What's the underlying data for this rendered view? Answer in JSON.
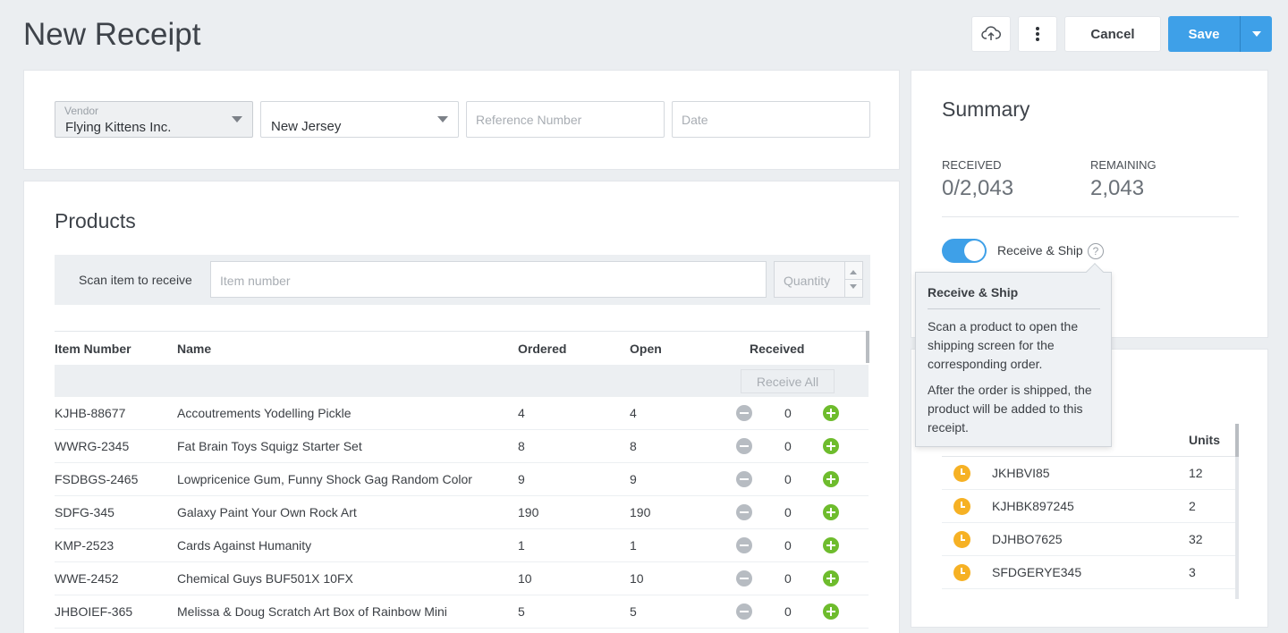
{
  "page": {
    "title": "New Receipt"
  },
  "toolbar": {
    "cancel_label": "Cancel",
    "save_label": "Save",
    "upload_icon": "cloud-upload-icon",
    "more_icon": "more-vertical-icon",
    "accent": "#3ea0e8"
  },
  "receipt": {
    "vendor_label": "Vendor",
    "vendor_value": "Flying Kittens Inc.",
    "location_value": "New Jersey",
    "reference_placeholder": "Reference Number",
    "date_placeholder": "Date"
  },
  "products": {
    "title": "Products",
    "scan_label": "Scan item to receive",
    "item_placeholder": "Item number",
    "quantity_placeholder": "Quantity",
    "columns": {
      "item_number": "Item Number",
      "name": "Name",
      "ordered": "Ordered",
      "open": "Open",
      "received": "Received"
    },
    "receive_all_label": "Receive All",
    "rows": [
      {
        "item": "KJHB-88677",
        "name": "Accoutrements Yodelling Pickle",
        "ordered": "4",
        "open": "4",
        "received": "0"
      },
      {
        "item": "WWRG-2345",
        "name": "Fat Brain Toys Squigz Starter Set",
        "ordered": "8",
        "open": "8",
        "received": "0"
      },
      {
        "item": "FSDBGS-2465",
        "name": "Lowpricenice Gum, Funny Shock Gag Random Color",
        "ordered": "9",
        "open": "9",
        "received": "0"
      },
      {
        "item": "SDFG-345",
        "name": "Galaxy Paint Your Own Rock Art",
        "ordered": "190",
        "open": "190",
        "received": "0"
      },
      {
        "item": "KMP-2523",
        "name": "Cards Against Humanity",
        "ordered": "1",
        "open": "1",
        "received": "0"
      },
      {
        "item": "WWE-2452",
        "name": "Chemical Guys BUF501X 10FX",
        "ordered": "10",
        "open": "10",
        "received": "0"
      },
      {
        "item": "JHBOIEF-365",
        "name": "Melissa & Doug Scratch Art Box of Rainbow Mini",
        "ordered": "5",
        "open": "5",
        "received": "0"
      }
    ]
  },
  "summary": {
    "title": "Summary",
    "received_label": "RECEIVED",
    "received_value": "0/2,043",
    "remaining_label": "REMAINING",
    "remaining_value": "2,043",
    "toggle_label": "Receive & Ship",
    "toggle_on": true,
    "help_glyph": "?"
  },
  "tooltip": {
    "title": "Receive & Ship",
    "paragraph1": "Scan a product to open the shipping screen for the corresponding order.",
    "paragraph2": "After the order is shipped, the product will be added to this receipt."
  },
  "pending": {
    "units_header": "Units",
    "rows": [
      {
        "item": "JKHBVI85",
        "units": "12"
      },
      {
        "item": "KJHBK897245",
        "units": "2"
      },
      {
        "item": "DJHBO7625",
        "units": "32"
      },
      {
        "item": "SFDGERYE345",
        "units": "3"
      }
    ]
  }
}
